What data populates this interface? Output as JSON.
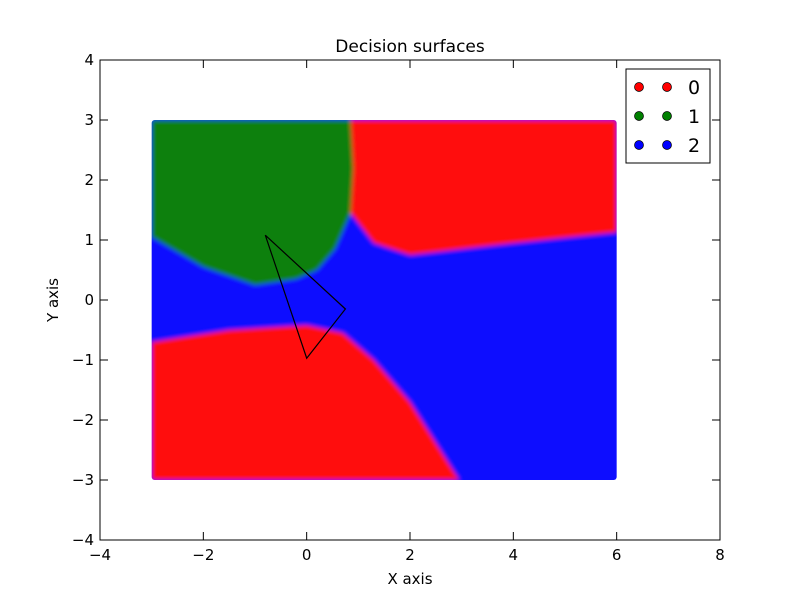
{
  "chart_data": {
    "type": "scatter",
    "title": "Decision surfaces",
    "xlabel": "X axis",
    "ylabel": "Y axis",
    "xlim": [
      -4,
      8
    ],
    "ylim": [
      -4,
      4
    ],
    "xticks": [
      -4,
      -2,
      0,
      2,
      4,
      6,
      8
    ],
    "yticks": [
      -4,
      -3,
      -2,
      -1,
      0,
      1,
      2,
      3,
      4
    ],
    "grid": false,
    "legend_position": "top-right",
    "series": [
      {
        "name": "0",
        "color": "#ff0000"
      },
      {
        "name": "1",
        "color": "#008000"
      },
      {
        "name": "2",
        "color": "#0000ff"
      }
    ],
    "surface": {
      "x_range": [
        -3,
        6
      ],
      "y_range": [
        -3,
        3
      ],
      "region_colors": {
        "class_0": "#ff1111",
        "class_1": "#118011",
        "class_2": "#1111ff"
      },
      "class_1_boundary": [
        [
          -3,
          3
        ],
        [
          0.85,
          3
        ],
        [
          0.9,
          2.2
        ],
        [
          0.85,
          1.45
        ],
        [
          0.55,
          0.85
        ],
        [
          0.2,
          0.5
        ],
        [
          -0.2,
          0.35
        ],
        [
          -1.0,
          0.25
        ],
        [
          -2.0,
          0.55
        ],
        [
          -3,
          1.05
        ]
      ],
      "class_0_top_boundary": [
        [
          0.85,
          3
        ],
        [
          6,
          3
        ],
        [
          6,
          1.13
        ],
        [
          4.0,
          0.95
        ],
        [
          2.0,
          0.75
        ],
        [
          1.3,
          0.95
        ],
        [
          0.85,
          1.45
        ],
        [
          0.9,
          2.2
        ]
      ],
      "class_0_bottom_boundary": [
        [
          -3,
          -0.7
        ],
        [
          -1.5,
          -0.5
        ],
        [
          0.0,
          -0.42
        ],
        [
          0.7,
          -0.55
        ],
        [
          1.3,
          -1.0
        ],
        [
          2.0,
          -1.7
        ],
        [
          2.95,
          -3
        ],
        [
          -3,
          -3
        ]
      ]
    },
    "triangle": [
      [
        -0.8,
        1.08
      ],
      [
        0.75,
        -0.15
      ],
      [
        0.0,
        -0.97
      ]
    ]
  }
}
